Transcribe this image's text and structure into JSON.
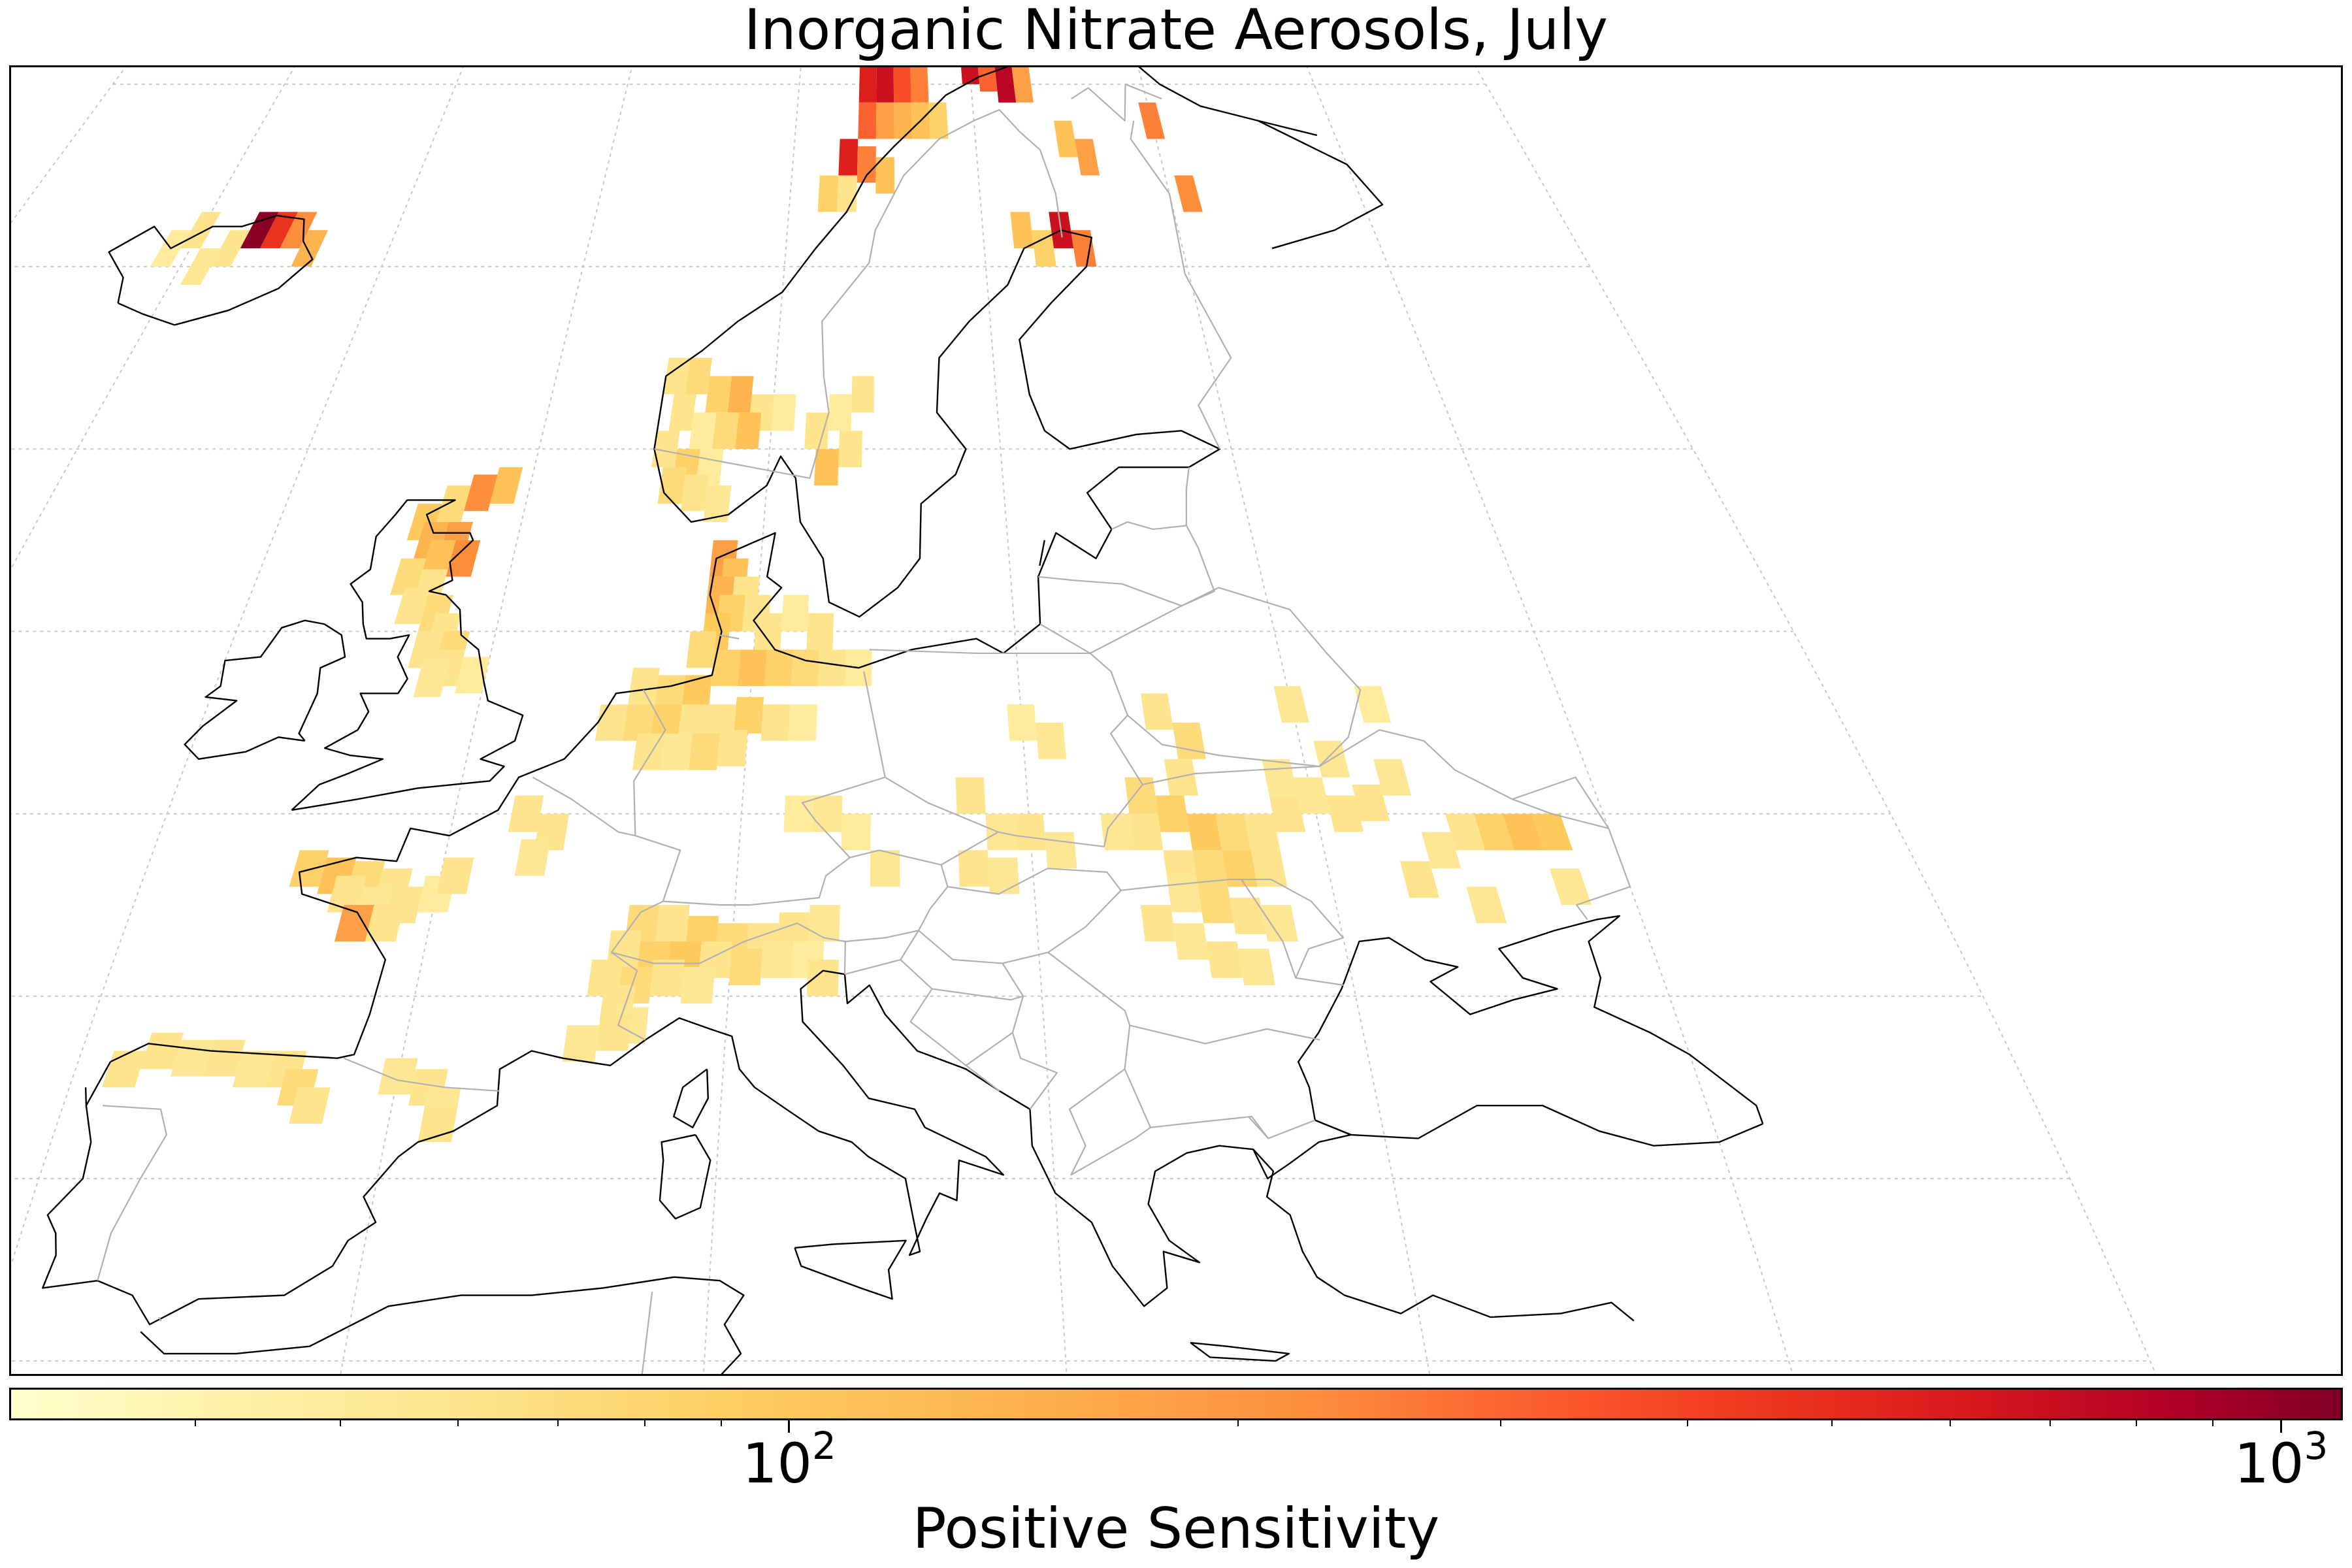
{
  "figure": {
    "title": "Inorganic Nitrate Aerosols, July",
    "colorbar": {
      "label": "Positive Sensitivity",
      "scale": "log",
      "range": [
        30,
        1100
      ],
      "ticks": [
        {
          "base": "10",
          "exp": "2",
          "value": 100
        },
        {
          "base": "10",
          "exp": "3",
          "value": 1000
        }
      ],
      "minor_ticks": [
        40,
        50,
        60,
        70,
        80,
        90,
        200,
        300,
        400,
        500,
        600,
        700,
        800,
        900
      ],
      "colormap": [
        "#ffffcc",
        "#fff0a6",
        "#fee38b",
        "#fecc5c",
        "#fdae4b",
        "#fd8d3c",
        "#fc5b2e",
        "#f03b20",
        "#d7191c",
        "#b10026",
        "#800026"
      ]
    }
  },
  "map_data": {
    "region": "Europe",
    "projection": "conic",
    "gridlines": true,
    "coastline_color": "#000000",
    "border_color": "#b0b0b0",
    "cell_size_deg": 1.0,
    "cells": [
      [
        -17,
        66,
        1000
      ],
      [
        -16,
        66,
        400
      ],
      [
        -15,
        66,
        180
      ],
      [
        -14,
        65.5,
        120
      ],
      [
        -20,
        66,
        60
      ],
      [
        -18,
        65.5,
        60
      ],
      [
        -19,
        65,
        55
      ],
      [
        -21,
        65.5,
        50
      ],
      [
        14,
        70,
        500
      ],
      [
        15,
        70,
        600
      ],
      [
        16,
        70,
        300
      ],
      [
        17,
        70,
        200
      ],
      [
        14,
        69,
        250
      ],
      [
        15,
        69,
        150
      ],
      [
        16,
        69,
        120
      ],
      [
        17,
        69,
        100
      ],
      [
        18,
        69,
        80
      ],
      [
        20,
        70.5,
        600
      ],
      [
        21,
        70.3,
        250
      ],
      [
        22,
        70,
        700
      ],
      [
        23,
        70,
        150
      ],
      [
        13,
        68,
        500
      ],
      [
        14,
        67.8,
        200
      ],
      [
        15,
        67.5,
        100
      ],
      [
        12,
        67,
        80
      ],
      [
        13,
        67,
        60
      ],
      [
        25,
        68.5,
        100
      ],
      [
        26,
        68,
        150
      ],
      [
        24,
        66,
        600
      ],
      [
        25,
        65.5,
        200
      ],
      [
        22,
        66,
        100
      ],
      [
        23,
        65.5,
        80
      ],
      [
        30,
        69,
        200
      ],
      [
        31,
        67,
        180
      ],
      [
        5.5,
        62,
        60
      ],
      [
        6.5,
        62,
        70
      ],
      [
        7.5,
        61.5,
        80
      ],
      [
        8.5,
        61.5,
        120
      ],
      [
        9.5,
        61,
        60
      ],
      [
        10.5,
        61,
        50
      ],
      [
        6,
        61,
        60
      ],
      [
        7,
        60.5,
        50
      ],
      [
        8,
        60.5,
        70
      ],
      [
        9,
        60.5,
        100
      ],
      [
        5.5,
        60,
        60
      ],
      [
        6.5,
        59.5,
        80
      ],
      [
        7.5,
        59.5,
        50
      ],
      [
        6,
        59,
        70
      ],
      [
        7,
        58.8,
        60
      ],
      [
        8,
        58.5,
        55
      ],
      [
        12,
        60.5,
        60
      ],
      [
        13,
        61,
        50
      ],
      [
        14,
        61.5,
        60
      ],
      [
        12.5,
        59.5,
        100
      ],
      [
        13.5,
        60,
        60
      ],
      [
        -3,
        58.5,
        70
      ],
      [
        -4,
        58,
        90
      ],
      [
        -3.5,
        57.5,
        120
      ],
      [
        -2.5,
        57.5,
        150
      ],
      [
        -2,
        57,
        180
      ],
      [
        -3,
        57,
        100
      ],
      [
        -4,
        56.5,
        70
      ],
      [
        -3,
        56.2,
        60
      ],
      [
        -2.5,
        55.5,
        70
      ],
      [
        -3.5,
        55.7,
        60
      ],
      [
        -2,
        55,
        60
      ],
      [
        -1.5,
        54.5,
        70
      ],
      [
        -2.5,
        54.5,
        60
      ],
      [
        -1.5,
        54,
        60
      ],
      [
        -0.5,
        53.8,
        50
      ],
      [
        -2,
        53.7,
        55
      ],
      [
        -1,
        59,
        100
      ],
      [
        -2,
        58.8,
        180
      ],
      [
        8.5,
        57,
        150
      ],
      [
        9,
        56.5,
        100
      ],
      [
        8.5,
        56,
        120
      ],
      [
        9.5,
        56,
        60
      ],
      [
        9,
        55.5,
        80
      ],
      [
        10,
        55.5,
        60
      ],
      [
        8.5,
        55,
        90
      ],
      [
        10.5,
        55,
        60
      ],
      [
        11.5,
        55.5,
        50
      ],
      [
        12.5,
        55,
        60
      ],
      [
        8,
        54.5,
        70
      ],
      [
        9,
        54,
        80
      ],
      [
        10,
        54,
        100
      ],
      [
        11,
        54,
        80
      ],
      [
        12,
        54,
        70
      ],
      [
        13,
        54,
        60
      ],
      [
        14,
        54,
        50
      ],
      [
        6,
        53.5,
        60
      ],
      [
        7,
        53.3,
        70
      ],
      [
        8,
        53.3,
        90
      ],
      [
        5,
        52.5,
        60
      ],
      [
        6,
        52.5,
        70
      ],
      [
        7,
        52.5,
        80
      ],
      [
        8,
        52.5,
        60
      ],
      [
        9,
        52.5,
        60
      ],
      [
        10,
        52.7,
        80
      ],
      [
        11,
        52.5,
        60
      ],
      [
        12,
        52.5,
        50
      ],
      [
        6.5,
        51.7,
        60
      ],
      [
        7.5,
        51.7,
        55
      ],
      [
        8.5,
        51.7,
        70
      ],
      [
        9.5,
        51.8,
        60
      ],
      [
        2.5,
        50,
        60
      ],
      [
        3.5,
        49.5,
        60
      ],
      [
        3,
        48.8,
        55
      ],
      [
        -4.5,
        48.5,
        80
      ],
      [
        -3.5,
        48.3,
        100
      ],
      [
        -2.5,
        48.2,
        70
      ],
      [
        -1.5,
        48,
        60
      ],
      [
        -3,
        47.8,
        60
      ],
      [
        -2,
        47.5,
        55
      ],
      [
        -1,
        47.5,
        60
      ],
      [
        0,
        47.8,
        50
      ],
      [
        -1.5,
        47,
        60
      ],
      [
        -2.5,
        47,
        150
      ],
      [
        0.5,
        48.3,
        60
      ],
      [
        7,
        47,
        70
      ],
      [
        8,
        47,
        60
      ],
      [
        9,
        46.7,
        80
      ],
      [
        10,
        46.5,
        70
      ],
      [
        11,
        46.5,
        60
      ],
      [
        12,
        46.8,
        60
      ],
      [
        13,
        47,
        55
      ],
      [
        6.5,
        46.3,
        60
      ],
      [
        7.5,
        46,
        80
      ],
      [
        8.5,
        46,
        90
      ],
      [
        9.5,
        46,
        60
      ],
      [
        10.5,
        45.8,
        70
      ],
      [
        11.5,
        46,
        55
      ],
      [
        6,
        45.5,
        60
      ],
      [
        7,
        45.3,
        70
      ],
      [
        8,
        45.5,
        60
      ],
      [
        9,
        45.3,
        55
      ],
      [
        6.5,
        44.8,
        60
      ],
      [
        7,
        44.2,
        55
      ],
      [
        6.5,
        44,
        60
      ],
      [
        5.5,
        43.7,
        55
      ],
      [
        12.5,
        46,
        50
      ],
      [
        13,
        45.5,
        60
      ],
      [
        12,
        50,
        50
      ],
      [
        13,
        50,
        55
      ],
      [
        14,
        49.5,
        50
      ],
      [
        15,
        48.5,
        55
      ],
      [
        18,
        50.5,
        60
      ],
      [
        19,
        49.5,
        55
      ],
      [
        20,
        49.5,
        60
      ],
      [
        21,
        49,
        55
      ],
      [
        18,
        48.5,
        60
      ],
      [
        19,
        48.3,
        55
      ],
      [
        20,
        52.5,
        50
      ],
      [
        21,
        52,
        55
      ],
      [
        25,
        52.8,
        60
      ],
      [
        26,
        52,
        70
      ],
      [
        25.5,
        51,
        60
      ],
      [
        24,
        50.5,
        70
      ],
      [
        25,
        50,
        80
      ],
      [
        26,
        49.5,
        90
      ],
      [
        27,
        49.5,
        70
      ],
      [
        28,
        49.5,
        60
      ],
      [
        29,
        50,
        60
      ],
      [
        24,
        49.5,
        60
      ],
      [
        23,
        49.5,
        55
      ],
      [
        25,
        48.5,
        60
      ],
      [
        26,
        48.5,
        70
      ],
      [
        27,
        48.5,
        80
      ],
      [
        28,
        48.5,
        60
      ],
      [
        25,
        47.8,
        55
      ],
      [
        26,
        47.5,
        70
      ],
      [
        27,
        47.2,
        60
      ],
      [
        28,
        47,
        55
      ],
      [
        24,
        47,
        60
      ],
      [
        25,
        46.5,
        55
      ],
      [
        26,
        46,
        60
      ],
      [
        27,
        45.8,
        55
      ],
      [
        30,
        50.5,
        55
      ],
      [
        31,
        50,
        60
      ],
      [
        32,
        50.3,
        60
      ],
      [
        33,
        51,
        55
      ],
      [
        33,
        53,
        50
      ],
      [
        30,
        53,
        55
      ],
      [
        36,
        49.5,
        80
      ],
      [
        37,
        49.5,
        100
      ],
      [
        38,
        49.5,
        90
      ],
      [
        35,
        49.5,
        60
      ],
      [
        34,
        49,
        55
      ],
      [
        33,
        48.2,
        60
      ],
      [
        38,
        48,
        55
      ],
      [
        35,
        47.5,
        55
      ],
      [
        29,
        51,
        55
      ],
      [
        31,
        51.5,
        55
      ],
      [
        -8.5,
        43,
        60
      ],
      [
        -7.5,
        43.5,
        60
      ],
      [
        -6.5,
        43.3,
        55
      ],
      [
        -5.5,
        43.3,
        60
      ],
      [
        -4.5,
        43,
        55
      ],
      [
        -3.5,
        43,
        60
      ],
      [
        -3,
        42.5,
        70
      ],
      [
        -2.5,
        42,
        60
      ],
      [
        0,
        42.8,
        55
      ],
      [
        1,
        42.5,
        60
      ],
      [
        1.5,
        42,
        55
      ],
      [
        1.5,
        41.5,
        60
      ]
    ]
  }
}
